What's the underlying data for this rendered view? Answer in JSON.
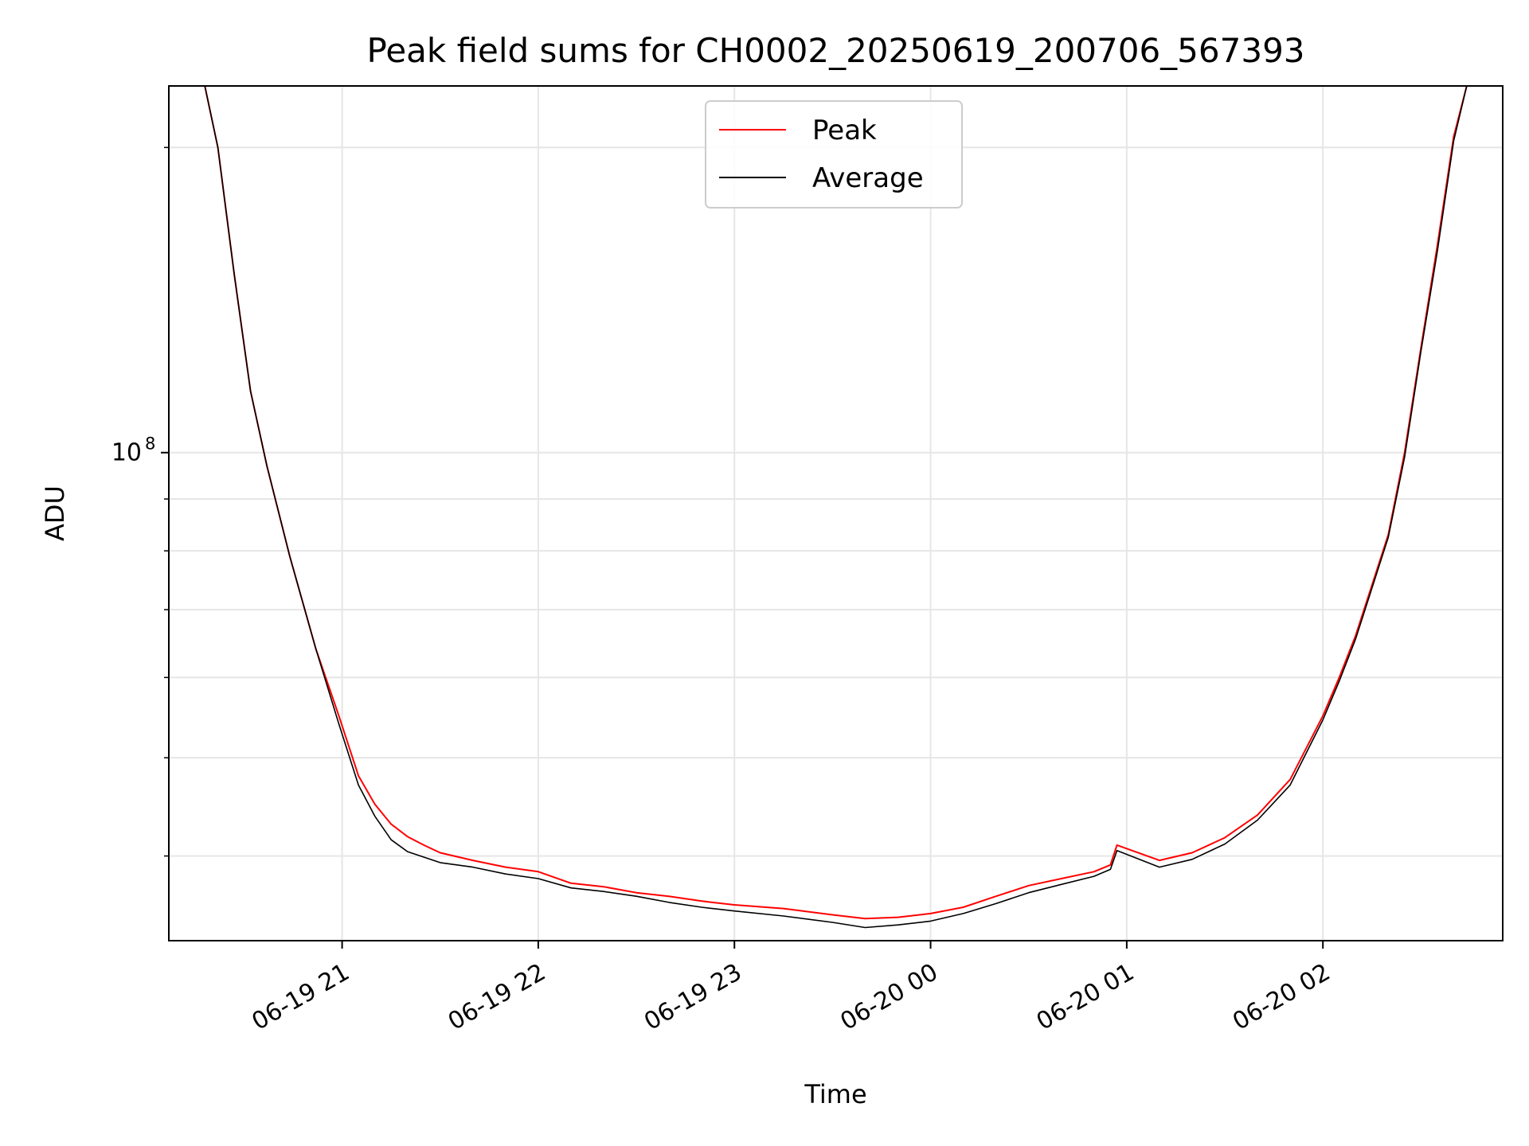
{
  "chart_data": {
    "type": "line",
    "title": "Peak field sums for CH0002_20250619_200706_567393",
    "xlabel": "Time",
    "ylabel": "ADU",
    "yscale": "log",
    "xlim": [
      "2025-06-19 20:07",
      "2025-06-20 02:55"
    ],
    "ylim": [
      33000000,
      230000000
    ],
    "xticks": [
      "06-19 21",
      "06-19 22",
      "06-19 23",
      "06-20 00",
      "06-20 01",
      "06-20 02"
    ],
    "yticks": [
      {
        "value": 100000000,
        "label": "10",
        "exponent": "8"
      }
    ],
    "yminor_ticks": [
      40000000,
      50000000,
      60000000,
      70000000,
      80000000,
      90000000,
      200000000
    ],
    "grid": true,
    "legend": "upper-center",
    "series": [
      {
        "name": "Peak",
        "color": "#ff0000",
        "x": [
          "2025-06-19 20:18",
          "2025-06-19 20:22",
          "2025-06-19 20:27",
          "2025-06-19 20:32",
          "2025-06-19 20:37",
          "2025-06-19 20:44",
          "2025-06-19 20:52",
          "2025-06-19 20:59",
          "2025-06-19 21:05",
          "2025-06-19 21:10",
          "2025-06-19 21:15",
          "2025-06-19 21:20",
          "2025-06-19 21:25",
          "2025-06-19 21:30",
          "2025-06-19 21:40",
          "2025-06-19 21:50",
          "2025-06-19 22:00",
          "2025-06-19 22:10",
          "2025-06-19 22:20",
          "2025-06-19 22:30",
          "2025-06-19 22:40",
          "2025-06-19 22:50",
          "2025-06-19 23:00",
          "2025-06-19 23:15",
          "2025-06-19 23:30",
          "2025-06-19 23:40",
          "2025-06-19 23:50",
          "2025-06-20 00:00",
          "2025-06-20 00:10",
          "2025-06-20 00:20",
          "2025-06-20 00:30",
          "2025-06-20 00:40",
          "2025-06-20 00:50",
          "2025-06-20 00:55",
          "2025-06-20 00:57",
          "2025-06-20 01:10",
          "2025-06-20 01:20",
          "2025-06-20 01:30",
          "2025-06-20 01:40",
          "2025-06-20 01:50",
          "2025-06-20 02:00",
          "2025-06-20 02:05",
          "2025-06-20 02:10",
          "2025-06-20 02:15",
          "2025-06-20 02:20",
          "2025-06-20 02:25",
          "2025-06-20 02:30",
          "2025-06-20 02:35",
          "2025-06-20 02:40",
          "2025-06-20 02:44"
        ],
        "values": [
          230000000,
          200000000,
          150000000,
          115000000,
          97000000,
          79000000,
          64000000,
          55000000,
          48000000,
          45000000,
          43000000,
          41800000,
          41000000,
          40300000,
          39600000,
          39000000,
          38600000,
          37600000,
          37300000,
          36800000,
          36500000,
          36100000,
          35800000,
          35500000,
          35000000,
          34700000,
          34800000,
          35100000,
          35600000,
          36500000,
          37400000,
          38000000,
          38600000,
          39200000,
          41000000,
          39600000,
          40300000,
          41700000,
          43900000,
          47600000,
          55000000,
          60000000,
          66000000,
          74000000,
          83000000,
          100000000,
          127000000,
          160000000,
          205000000,
          230000000
        ]
      },
      {
        "name": "Average",
        "color": "#000000",
        "x": [
          "2025-06-19 20:18",
          "2025-06-19 20:22",
          "2025-06-19 20:27",
          "2025-06-19 20:32",
          "2025-06-19 20:37",
          "2025-06-19 20:44",
          "2025-06-19 20:52",
          "2025-06-19 20:59",
          "2025-06-19 21:05",
          "2025-06-19 21:10",
          "2025-06-19 21:15",
          "2025-06-19 21:20",
          "2025-06-19 21:25",
          "2025-06-19 21:30",
          "2025-06-19 21:40",
          "2025-06-19 21:50",
          "2025-06-19 22:00",
          "2025-06-19 22:10",
          "2025-06-19 22:20",
          "2025-06-19 22:30",
          "2025-06-19 22:40",
          "2025-06-19 22:50",
          "2025-06-19 23:00",
          "2025-06-19 23:15",
          "2025-06-19 23:30",
          "2025-06-19 23:40",
          "2025-06-19 23:50",
          "2025-06-20 00:00",
          "2025-06-20 00:10",
          "2025-06-20 00:20",
          "2025-06-20 00:30",
          "2025-06-20 00:40",
          "2025-06-20 00:50",
          "2025-06-20 00:55",
          "2025-06-20 00:57",
          "2025-06-20 01:10",
          "2025-06-20 01:20",
          "2025-06-20 01:30",
          "2025-06-20 01:40",
          "2025-06-20 01:50",
          "2025-06-20 02:00",
          "2025-06-20 02:05",
          "2025-06-20 02:10",
          "2025-06-20 02:15",
          "2025-06-20 02:20",
          "2025-06-20 02:25",
          "2025-06-20 02:30",
          "2025-06-20 02:35",
          "2025-06-20 02:40",
          "2025-06-20 02:44"
        ],
        "values": [
          230000000,
          200000000,
          150000000,
          115000000,
          97000000,
          79000000,
          64000000,
          54000000,
          47000000,
          43800000,
          41500000,
          40400000,
          39900000,
          39400000,
          39000000,
          38400000,
          38000000,
          37200000,
          36900000,
          36500000,
          36000000,
          35600000,
          35300000,
          34900000,
          34400000,
          34000000,
          34200000,
          34500000,
          35100000,
          35900000,
          36800000,
          37500000,
          38200000,
          38800000,
          40500000,
          39000000,
          39700000,
          41100000,
          43400000,
          47000000,
          54500000,
          59500000,
          65500000,
          73500000,
          82500000,
          99000000,
          126000000,
          158000000,
          203000000,
          230000000
        ]
      }
    ]
  }
}
